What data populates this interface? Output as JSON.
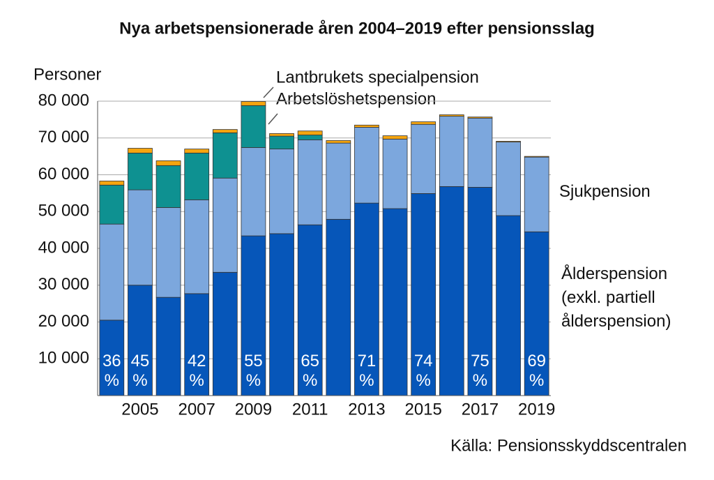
{
  "chart_data": {
    "type": "stacked-bar",
    "title": "Nya arbetspensionerade åren 2004–2019 efter pensionsslag",
    "y_label": "Personer",
    "source": "Källa: Pensionsskyddscentralen",
    "categories": [
      null,
      "2005",
      null,
      "2007",
      null,
      "2009",
      null,
      "2011",
      null,
      "2013",
      null,
      "2015",
      null,
      "2017",
      null,
      "2019"
    ],
    "series": [
      {
        "name": "Ålderspension (exkl. partiell ålderspension)",
        "color": "#0656b9",
        "values": [
          20500,
          30000,
          26700,
          27700,
          33500,
          43400,
          44000,
          46400,
          47900,
          52300,
          50800,
          54900,
          56800,
          56600,
          48900,
          44500
        ]
      },
      {
        "name": "Sjukpension",
        "color": "#7ca7dd",
        "values": [
          26100,
          25900,
          24400,
          25500,
          25600,
          24000,
          23000,
          23100,
          20700,
          20600,
          18900,
          18800,
          19100,
          18800,
          20000,
          20300
        ]
      },
      {
        "name": "Arbetslöshetspension",
        "color": "#0e9191",
        "values": [
          10600,
          10000,
          11400,
          12700,
          12300,
          11400,
          3500,
          1300,
          0,
          0,
          0,
          0,
          0,
          0,
          0,
          0
        ]
      },
      {
        "name": "Lantbrukets specialpension",
        "color": "#f5a50f",
        "values": [
          1100,
          1300,
          1300,
          1100,
          900,
          1100,
          700,
          1100,
          700,
          600,
          900,
          700,
          400,
          300,
          200,
          200
        ]
      }
    ],
    "share_labels": [
      "36 %",
      "45 %",
      null,
      "42 %",
      null,
      "55 %",
      null,
      "65 %",
      null,
      "71 %",
      null,
      "74 %",
      null,
      "75 %",
      null,
      "69 %"
    ],
    "ylim": [
      0,
      80000
    ],
    "yticks": [
      {
        "value": 10000,
        "label": "10 000"
      },
      {
        "value": 20000,
        "label": "20 000"
      },
      {
        "value": 30000,
        "label": "30 000"
      },
      {
        "value": 40000,
        "label": "40 000"
      },
      {
        "value": 50000,
        "label": "50 000"
      },
      {
        "value": 60000,
        "label": "60 000"
      },
      {
        "value": 70000,
        "label": "70 000"
      },
      {
        "value": 80000,
        "label": "80 000"
      }
    ],
    "grid": true
  }
}
